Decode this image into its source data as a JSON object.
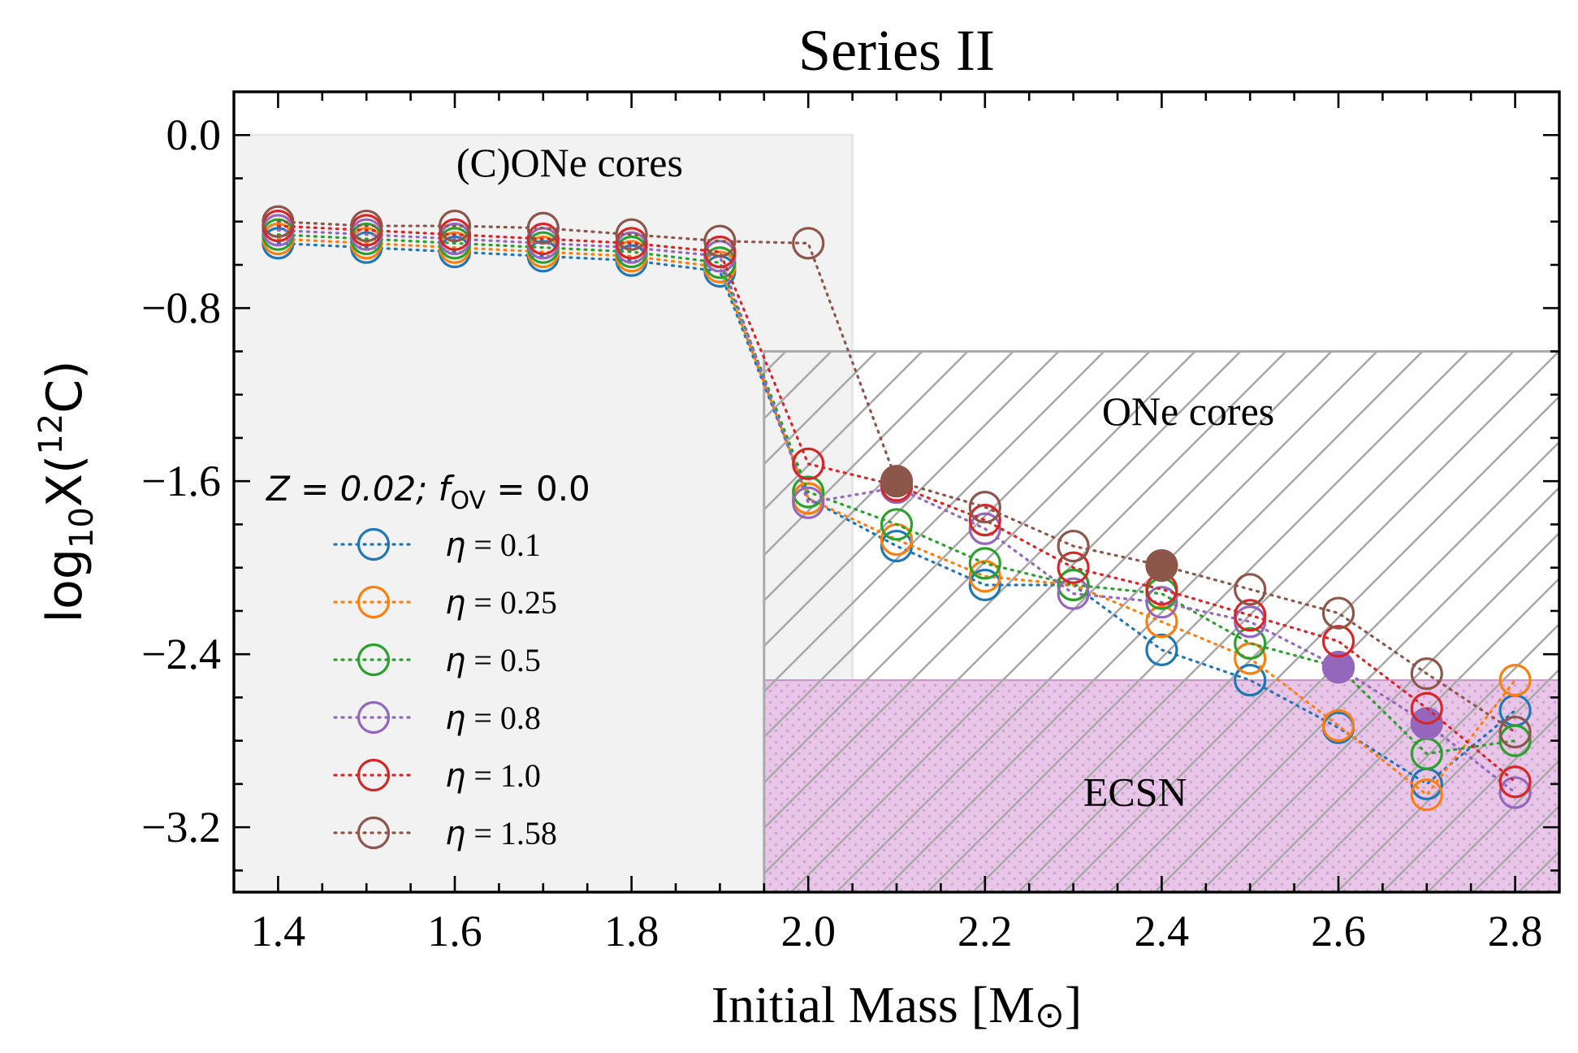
{
  "chart_data": {
    "type": "scatter",
    "title": "Series II",
    "xlabel": "Initial Mass [M",
    "xlabel_suffix": "]",
    "xlabel_symbol": "⊙",
    "ylabel": "log",
    "ylabel_sub": "10",
    "ylabel_mid": "X(",
    "ylabel_sup": "12",
    "ylabel_end": "C)",
    "xlim": [
      1.35,
      2.85
    ],
    "ylim": [
      -3.5,
      0.2
    ],
    "xticks": [
      1.4,
      1.6,
      1.8,
      2.0,
      2.2,
      2.4,
      2.6,
      2.8
    ],
    "xtick_labels": [
      "1.4",
      "1.6",
      "1.8",
      "2.0",
      "2.2",
      "2.4",
      "2.6",
      "2.8"
    ],
    "yticks": [
      0.0,
      -0.8,
      -1.6,
      -2.4,
      -3.2
    ],
    "ytick_labels": [
      "0.0",
      "−0.8",
      "−1.6",
      "−2.4",
      "−3.2"
    ],
    "regions": [
      {
        "label": "(C)ONe cores",
        "x": [
          1.35,
          2.05
        ],
        "y": [
          -3.5,
          0.0
        ],
        "color": "#f2f2f2",
        "label_x": 1.73,
        "label_y": -0.19
      },
      {
        "label": "ONe cores",
        "x": [
          1.95,
          2.85
        ],
        "y": [
          -3.5,
          -1.0
        ],
        "color": "#aaaaaa",
        "label_x": 2.43,
        "label_y": -1.34
      },
      {
        "label": "ECSN",
        "x": [
          1.95,
          2.85
        ],
        "y": [
          -3.5,
          -2.52
        ],
        "color": "#e8c6e8",
        "label_x": 2.37,
        "label_y": -3.1
      }
    ],
    "legend_title_prefix": "Z = 0.02; f",
    "legend_title_sub": "OV",
    "legend_title_suffix": " = 0.0",
    "legend_placement": "center-left",
    "x": [
      1.4,
      1.5,
      1.6,
      1.7,
      1.8,
      1.9,
      2.0,
      2.1,
      2.2,
      2.3,
      2.4,
      2.5,
      2.6,
      2.7,
      2.8
    ],
    "series": [
      {
        "name": "η = 0.1",
        "eta": "η",
        "value": " = 0.1",
        "color": "#1f77b4",
        "y": [
          -0.5,
          -0.52,
          -0.54,
          -0.56,
          -0.58,
          -0.63,
          -1.68,
          -1.9,
          -2.08,
          -2.08,
          -2.38,
          -2.52,
          -2.74,
          -3.0,
          -2.66
        ],
        "filled": [
          false,
          false,
          false,
          false,
          false,
          false,
          false,
          false,
          false,
          false,
          false,
          false,
          false,
          false,
          false
        ]
      },
      {
        "name": "η = 0.25",
        "eta": "η",
        "value": " = 0.25",
        "color": "#ff7f0e",
        "y": [
          -0.48,
          -0.5,
          -0.52,
          -0.54,
          -0.56,
          -0.61,
          -1.68,
          -1.87,
          -2.04,
          -2.08,
          -2.25,
          -2.42,
          -2.73,
          -3.05,
          -2.52
        ],
        "filled": [
          false,
          false,
          false,
          false,
          false,
          false,
          false,
          false,
          false,
          false,
          false,
          false,
          false,
          false,
          false
        ]
      },
      {
        "name": "η = 0.5",
        "eta": "η",
        "value": " = 0.5",
        "color": "#2ca02c",
        "y": [
          -0.46,
          -0.48,
          -0.5,
          -0.52,
          -0.54,
          -0.59,
          -1.65,
          -1.8,
          -1.98,
          -2.08,
          -2.12,
          -2.35,
          -2.46,
          -2.86,
          -2.8
        ],
        "filled": [
          false,
          false,
          false,
          false,
          false,
          false,
          false,
          false,
          false,
          false,
          false,
          false,
          false,
          false,
          false
        ]
      },
      {
        "name": "η = 0.8",
        "eta": "η",
        "value": " = 0.8",
        "color": "#9467bd",
        "y": [
          -0.44,
          -0.46,
          -0.48,
          -0.5,
          -0.52,
          -0.56,
          -1.7,
          -1.63,
          -1.82,
          -2.12,
          -2.16,
          -2.25,
          -2.46,
          -2.72,
          -3.04
        ],
        "filled": [
          false,
          false,
          false,
          false,
          false,
          false,
          false,
          false,
          false,
          false,
          false,
          false,
          true,
          true,
          false
        ]
      },
      {
        "name": "η = 1.0",
        "eta": "η",
        "value": " = 1.0",
        "color": "#d62728",
        "y": [
          -0.42,
          -0.44,
          -0.46,
          -0.48,
          -0.5,
          -0.54,
          -1.52,
          -1.62,
          -1.78,
          -2.0,
          -2.1,
          -2.22,
          -2.34,
          -2.65,
          -2.99
        ],
        "filled": [
          false,
          false,
          false,
          false,
          false,
          false,
          false,
          false,
          false,
          false,
          false,
          false,
          false,
          false,
          false
        ]
      },
      {
        "name": "η = 1.58",
        "eta": "η",
        "value": " = 1.58",
        "color": "#8c564b",
        "y": [
          -0.4,
          -0.42,
          -0.42,
          -0.43,
          -0.46,
          -0.49,
          -0.5,
          -1.6,
          -1.72,
          -1.9,
          -1.99,
          -2.1,
          -2.21,
          -2.49,
          -2.76
        ],
        "filled": [
          false,
          false,
          false,
          false,
          false,
          false,
          false,
          true,
          false,
          false,
          true,
          false,
          false,
          false,
          false
        ]
      }
    ]
  }
}
